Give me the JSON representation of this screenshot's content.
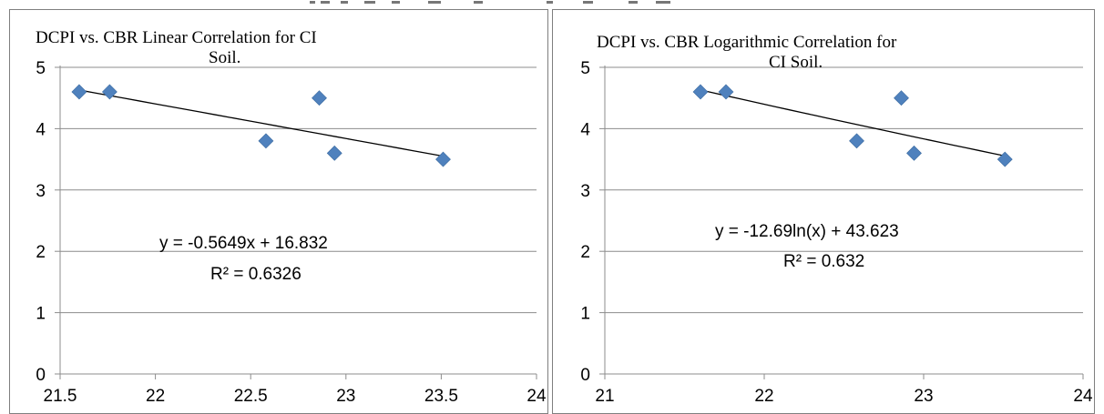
{
  "chart_data": [
    {
      "type": "scatter",
      "title_lines": [
        "DCPI vs. CBR Linear Correlation for CI",
        "Soil."
      ],
      "xlabel": "",
      "ylabel": "",
      "xlim": [
        21.5,
        24
      ],
      "ylim": [
        0,
        5
      ],
      "x_ticks": [
        "21.5",
        "22",
        "22.5",
        "23",
        "23.5",
        "24"
      ],
      "y_ticks": [
        "0",
        "1",
        "2",
        "3",
        "4",
        "5"
      ],
      "grid": "horizontal",
      "marker_color": "#4F81BD",
      "points": [
        {
          "x": 21.6,
          "y": 4.6
        },
        {
          "x": 21.76,
          "y": 4.6
        },
        {
          "x": 22.58,
          "y": 3.8
        },
        {
          "x": 22.86,
          "y": 4.5
        },
        {
          "x": 22.94,
          "y": 3.6
        },
        {
          "x": 23.51,
          "y": 3.5
        }
      ],
      "trendline": {
        "kind": "linear",
        "slope": -0.5649,
        "intercept": 16.832,
        "x_range": [
          21.6,
          23.51
        ]
      },
      "equation": "y = -0.5649x + 16.832",
      "r_squared": "R² = 0.6326"
    },
    {
      "type": "scatter",
      "title_lines": [
        "DCPI vs. CBR Logarithmic Correlation for",
        "CI Soil."
      ],
      "xlabel": "",
      "ylabel": "",
      "xlim": [
        21,
        24
      ],
      "ylim": [
        0,
        5
      ],
      "x_ticks": [
        "21",
        "22",
        "23",
        "24"
      ],
      "y_ticks": [
        "0",
        "1",
        "2",
        "3",
        "4",
        "5"
      ],
      "grid": "horizontal",
      "marker_color": "#4F81BD",
      "points": [
        {
          "x": 21.6,
          "y": 4.6
        },
        {
          "x": 21.76,
          "y": 4.6
        },
        {
          "x": 22.58,
          "y": 3.8
        },
        {
          "x": 22.86,
          "y": 4.5
        },
        {
          "x": 22.94,
          "y": 3.6
        },
        {
          "x": 23.51,
          "y": 3.5
        }
      ],
      "trendline": {
        "kind": "log",
        "a": -12.69,
        "b": 43.623,
        "x_range": [
          21.6,
          23.51
        ]
      },
      "equation": "y = -12.69ln(x) + 43.623",
      "r_squared": "R² = 0.632"
    }
  ]
}
